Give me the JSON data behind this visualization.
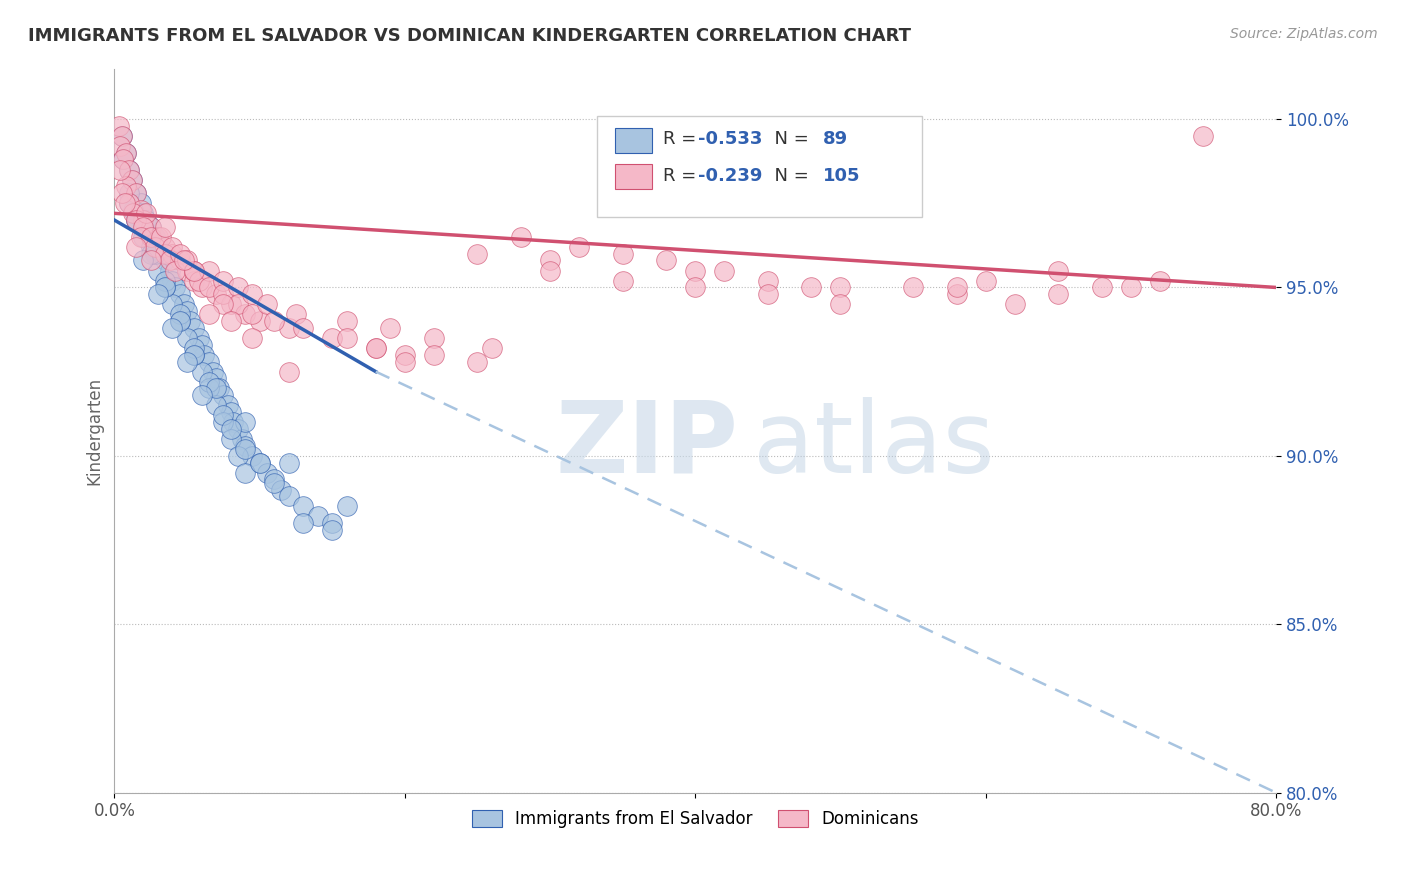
{
  "title": "IMMIGRANTS FROM EL SALVADOR VS DOMINICAN KINDERGARTEN CORRELATION CHART",
  "source": "Source: ZipAtlas.com",
  "ylabel": "Kindergarten",
  "xlim": [
    0.0,
    80.0
  ],
  "ylim": [
    80.0,
    101.5
  ],
  "yticks": [
    80.0,
    85.0,
    90.0,
    95.0,
    100.0
  ],
  "xticks": [
    0.0,
    20.0,
    40.0,
    60.0,
    80.0
  ],
  "xtick_labels": [
    "0.0%",
    "",
    "",
    "",
    "80.0%"
  ],
  "ytick_labels": [
    "80.0%",
    "85.0%",
    "90.0%",
    "95.0%",
    "100.0%"
  ],
  "blue_color": "#a8c4e0",
  "pink_color": "#f5b8c8",
  "trend_blue": "#3060b0",
  "trend_pink": "#d05070",
  "watermark_zip": "ZIP",
  "watermark_atlas": "atlas",
  "blue_scatter": [
    [
      0.5,
      99.5
    ],
    [
      0.8,
      99.0
    ],
    [
      1.0,
      98.5
    ],
    [
      1.2,
      98.2
    ],
    [
      0.6,
      98.8
    ],
    [
      1.5,
      97.8
    ],
    [
      1.8,
      97.5
    ],
    [
      2.0,
      97.2
    ],
    [
      2.2,
      97.0
    ],
    [
      2.5,
      96.8
    ],
    [
      2.8,
      96.5
    ],
    [
      1.0,
      97.8
    ],
    [
      1.3,
      97.3
    ],
    [
      3.0,
      96.2
    ],
    [
      3.3,
      96.0
    ],
    [
      3.5,
      95.8
    ],
    [
      3.8,
      95.5
    ],
    [
      4.0,
      95.2
    ],
    [
      4.2,
      95.0
    ],
    [
      4.5,
      94.8
    ],
    [
      4.8,
      94.5
    ],
    [
      5.0,
      94.3
    ],
    [
      5.2,
      94.0
    ],
    [
      5.5,
      93.8
    ],
    [
      5.8,
      93.5
    ],
    [
      6.0,
      93.3
    ],
    [
      6.2,
      93.0
    ],
    [
      6.5,
      92.8
    ],
    [
      6.8,
      92.5
    ],
    [
      7.0,
      92.3
    ],
    [
      7.2,
      92.0
    ],
    [
      7.5,
      91.8
    ],
    [
      7.8,
      91.5
    ],
    [
      8.0,
      91.3
    ],
    [
      8.2,
      91.0
    ],
    [
      8.5,
      90.8
    ],
    [
      8.8,
      90.5
    ],
    [
      9.0,
      90.3
    ],
    [
      9.5,
      90.0
    ],
    [
      10.0,
      89.8
    ],
    [
      10.5,
      89.5
    ],
    [
      11.0,
      89.3
    ],
    [
      11.5,
      89.0
    ],
    [
      12.0,
      88.8
    ],
    [
      13.0,
      88.5
    ],
    [
      14.0,
      88.2
    ],
    [
      15.0,
      88.0
    ],
    [
      2.0,
      96.5
    ],
    [
      2.5,
      96.2
    ],
    [
      3.0,
      95.5
    ],
    [
      3.5,
      95.0
    ],
    [
      4.0,
      94.5
    ],
    [
      4.5,
      94.0
    ],
    [
      5.0,
      93.5
    ],
    [
      5.5,
      93.0
    ],
    [
      6.0,
      92.5
    ],
    [
      6.5,
      92.0
    ],
    [
      7.0,
      91.5
    ],
    [
      7.5,
      91.0
    ],
    [
      8.0,
      90.5
    ],
    [
      8.5,
      90.0
    ],
    [
      9.0,
      89.5
    ],
    [
      1.5,
      97.0
    ],
    [
      2.0,
      96.8
    ],
    [
      2.8,
      96.0
    ],
    [
      3.5,
      95.2
    ],
    [
      4.5,
      94.2
    ],
    [
      5.5,
      93.2
    ],
    [
      6.5,
      92.2
    ],
    [
      7.5,
      91.2
    ],
    [
      9.0,
      90.2
    ],
    [
      11.0,
      89.2
    ],
    [
      13.0,
      88.0
    ],
    [
      1.0,
      97.5
    ],
    [
      1.5,
      97.0
    ],
    [
      2.5,
      96.0
    ],
    [
      3.5,
      95.0
    ],
    [
      4.5,
      94.0
    ],
    [
      5.5,
      93.0
    ],
    [
      7.0,
      92.0
    ],
    [
      9.0,
      91.0
    ],
    [
      12.0,
      89.8
    ],
    [
      16.0,
      88.5
    ],
    [
      2.0,
      95.8
    ],
    [
      3.0,
      94.8
    ],
    [
      4.0,
      93.8
    ],
    [
      5.0,
      92.8
    ],
    [
      6.0,
      91.8
    ],
    [
      8.0,
      90.8
    ],
    [
      10.0,
      89.8
    ],
    [
      15.0,
      87.8
    ]
  ],
  "pink_scatter": [
    [
      0.3,
      99.8
    ],
    [
      0.5,
      99.5
    ],
    [
      0.4,
      99.2
    ],
    [
      0.8,
      99.0
    ],
    [
      0.6,
      98.8
    ],
    [
      1.0,
      98.5
    ],
    [
      1.2,
      98.2
    ],
    [
      0.8,
      98.0
    ],
    [
      1.5,
      97.8
    ],
    [
      1.0,
      97.5
    ],
    [
      0.5,
      97.8
    ],
    [
      1.8,
      97.3
    ],
    [
      2.0,
      97.0
    ],
    [
      1.3,
      97.2
    ],
    [
      0.7,
      97.5
    ],
    [
      2.5,
      96.8
    ],
    [
      1.5,
      97.0
    ],
    [
      2.2,
      97.2
    ],
    [
      3.0,
      96.5
    ],
    [
      2.0,
      96.8
    ],
    [
      1.8,
      96.5
    ],
    [
      3.5,
      96.2
    ],
    [
      2.5,
      96.5
    ],
    [
      2.8,
      96.2
    ],
    [
      4.0,
      96.0
    ],
    [
      3.2,
      96.5
    ],
    [
      3.5,
      96.0
    ],
    [
      4.5,
      95.8
    ],
    [
      4.0,
      96.2
    ],
    [
      3.8,
      95.8
    ],
    [
      5.0,
      95.5
    ],
    [
      4.5,
      96.0
    ],
    [
      4.2,
      95.5
    ],
    [
      5.5,
      95.2
    ],
    [
      5.0,
      95.8
    ],
    [
      5.5,
      95.5
    ],
    [
      6.0,
      95.0
    ],
    [
      5.8,
      95.2
    ],
    [
      6.5,
      95.5
    ],
    [
      7.0,
      94.8
    ],
    [
      6.5,
      95.0
    ],
    [
      7.5,
      95.2
    ],
    [
      8.0,
      94.5
    ],
    [
      7.5,
      94.8
    ],
    [
      8.5,
      95.0
    ],
    [
      9.0,
      94.2
    ],
    [
      8.5,
      94.5
    ],
    [
      9.5,
      94.8
    ],
    [
      10.0,
      94.0
    ],
    [
      9.5,
      94.2
    ],
    [
      10.5,
      94.5
    ],
    [
      12.0,
      93.8
    ],
    [
      11.0,
      94.0
    ],
    [
      12.5,
      94.2
    ],
    [
      15.0,
      93.5
    ],
    [
      13.0,
      93.8
    ],
    [
      16.0,
      94.0
    ],
    [
      18.0,
      93.2
    ],
    [
      16.0,
      93.5
    ],
    [
      19.0,
      93.8
    ],
    [
      20.0,
      93.0
    ],
    [
      18.0,
      93.2
    ],
    [
      22.0,
      93.5
    ],
    [
      25.0,
      92.8
    ],
    [
      22.0,
      93.0
    ],
    [
      26.0,
      93.2
    ],
    [
      28.0,
      96.5
    ],
    [
      25.0,
      96.0
    ],
    [
      30.0,
      95.8
    ],
    [
      32.0,
      96.2
    ],
    [
      30.0,
      95.5
    ],
    [
      35.0,
      96.0
    ],
    [
      38.0,
      95.8
    ],
    [
      35.0,
      95.2
    ],
    [
      40.0,
      95.5
    ],
    [
      42.0,
      95.5
    ],
    [
      40.0,
      95.0
    ],
    [
      45.0,
      95.2
    ],
    [
      48.0,
      95.0
    ],
    [
      45.0,
      94.8
    ],
    [
      50.0,
      95.0
    ],
    [
      55.0,
      95.0
    ],
    [
      50.0,
      94.5
    ],
    [
      58.0,
      94.8
    ],
    [
      60.0,
      95.2
    ],
    [
      58.0,
      95.0
    ],
    [
      65.0,
      95.5
    ],
    [
      65.0,
      94.8
    ],
    [
      62.0,
      94.5
    ],
    [
      70.0,
      95.0
    ],
    [
      72.0,
      95.2
    ],
    [
      68.0,
      95.0
    ],
    [
      75.0,
      99.5
    ],
    [
      1.5,
      96.2
    ],
    [
      2.5,
      95.8
    ],
    [
      0.4,
      98.5
    ],
    [
      3.5,
      96.8
    ],
    [
      5.5,
      95.5
    ],
    [
      7.5,
      94.5
    ],
    [
      4.8,
      95.8
    ],
    [
      6.5,
      94.2
    ],
    [
      9.5,
      93.5
    ],
    [
      12.0,
      92.5
    ],
    [
      8.0,
      94.0
    ],
    [
      20.0,
      92.8
    ]
  ],
  "blue_trendline_solid": [
    [
      0.0,
      97.0
    ],
    [
      18.0,
      92.5
    ]
  ],
  "blue_trendline_dashed": [
    [
      18.0,
      92.5
    ],
    [
      80.0,
      80.0
    ]
  ],
  "pink_trendline": [
    [
      0.0,
      97.2
    ],
    [
      80.0,
      95.0
    ]
  ]
}
